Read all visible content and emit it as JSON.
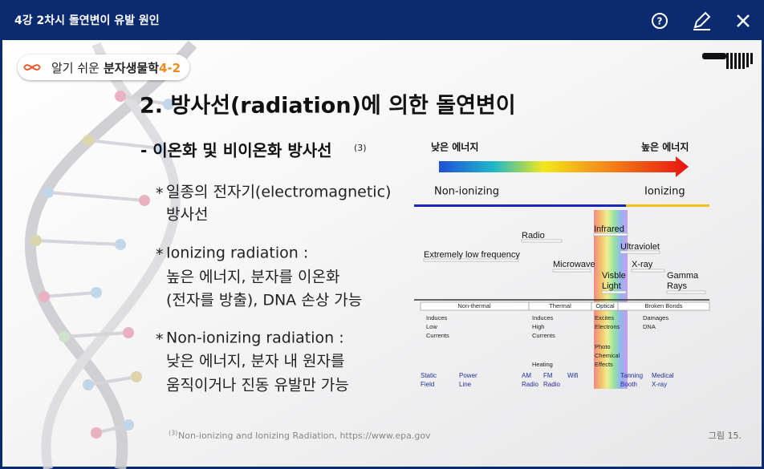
{
  "header": {
    "title": "4강 2차시 돌연변이 유발 원인"
  },
  "logo": {
    "light": "알기 쉬운",
    "bold": "분자생물학",
    "number": "4-2"
  },
  "slide": {
    "title": "2. 방사선(radiation)에 의한 돌연변이",
    "subtitle": "- 이온화 및 비이온화 방사선",
    "subtitle_ref": "(3)",
    "bullet_marker": "*",
    "bullets": [
      [
        "일종의 전자기(electromagnetic)",
        "방사선"
      ],
      [
        "Ionizing radiation :",
        "높은 에너지, 분자를 이온화",
        "(전자를 방출), DNA 손상 가능"
      ],
      [
        "Non-ionizing radiation :",
        "낮은 에너지, 분자 내 원자를",
        "움직이거나 진동 유발만 가능"
      ]
    ],
    "footnote_ref": "(3)",
    "footnote": "Non-ionizing and Ionizing Radiation, https://www.epa.gov",
    "caption": "그림 15."
  },
  "figure": {
    "low_energy": "낮은 에너지",
    "high_energy": "높은 에너지",
    "non_ionizing": "Non-ionizing",
    "ionizing": "Ionizing",
    "bands": {
      "radio": "Radio",
      "infrared": "Infrared",
      "ultraviolet": "Ultraviolet",
      "elf": "Extremely low frequency",
      "microwave": "Microwave",
      "xray": "X-ray",
      "visible": [
        "Visble",
        "Light"
      ],
      "gamma": [
        "Gamma",
        "Rays"
      ]
    },
    "effect_headers": [
      "Non-thermal",
      "Thermal",
      "Optical",
      "Broken Bonds"
    ],
    "effects": {
      "low_currents": [
        "Induces",
        "Low",
        "Currents"
      ],
      "high_currents": [
        "Induces",
        "High",
        "Currents"
      ],
      "electrons": [
        "Excites",
        "Electrons"
      ],
      "dna": [
        "Damages",
        "DNA"
      ],
      "photo": [
        "Photo",
        "Chemical",
        "Effects"
      ],
      "heating": "Heating"
    },
    "sources": {
      "static": [
        "Static",
        "Field"
      ],
      "power": [
        "Power",
        "Line"
      ],
      "am": [
        "AM",
        "Radio"
      ],
      "fm": [
        "FM",
        "Radio"
      ],
      "wifi": "Wifi",
      "tanning": [
        "Tanning",
        "Booth"
      ],
      "medical": [
        "Medical",
        "X-ray"
      ]
    }
  }
}
